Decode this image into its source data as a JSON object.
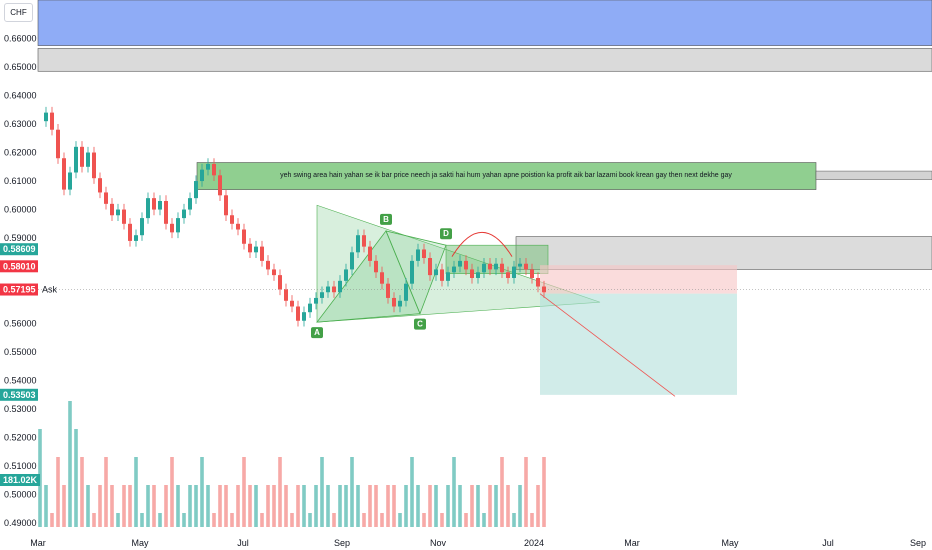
{
  "symbol": "CHF",
  "chart_data": {
    "type": "candlestick",
    "ylim": [
      0.4855,
      0.6735
    ],
    "y_ticks": [
      0.66,
      0.65,
      0.64,
      0.63,
      0.62,
      0.61,
      0.6,
      0.59,
      0.56,
      0.55,
      0.54,
      0.53,
      0.52,
      0.51,
      0.5,
      0.49
    ],
    "y_tick_labels": [
      "0.66000",
      "0.65000",
      "0.64000",
      "0.63000",
      "0.62000",
      "0.61000",
      "0.60000",
      "0.59000",
      "0.56000",
      "0.55000",
      "0.54000",
      "0.53000",
      "0.52000",
      "0.51000",
      "0.50000",
      "0.49000"
    ],
    "x_labels": [
      "Mar",
      "May",
      "Jul",
      "Sep",
      "Nov",
      "2024",
      "Mar",
      "May",
      "Jul",
      "Sep"
    ],
    "price_path": [
      0.631,
      0.634,
      0.628,
      0.618,
      0.607,
      0.613,
      0.622,
      0.615,
      0.62,
      0.611,
      0.606,
      0.602,
      0.598,
      0.6,
      0.595,
      0.589,
      0.591,
      0.597,
      0.604,
      0.6,
      0.603,
      0.595,
      0.592,
      0.597,
      0.6,
      0.604,
      0.61,
      0.614,
      0.616,
      0.612,
      0.605,
      0.598,
      0.595,
      0.593,
      0.588,
      0.585,
      0.587,
      0.582,
      0.579,
      0.577,
      0.572,
      0.568,
      0.566,
      0.561,
      0.564,
      0.567,
      0.569,
      0.571,
      0.573,
      0.571,
      0.575,
      0.579,
      0.585,
      0.591,
      0.587,
      0.582,
      0.578,
      0.574,
      0.569,
      0.566,
      0.568,
      0.574,
      0.582,
      0.586,
      0.583,
      0.577,
      0.579,
      0.575,
      0.578,
      0.58,
      0.582,
      0.579,
      0.576,
      0.578,
      0.581,
      0.579,
      0.581,
      0.578,
      0.576,
      0.58,
      0.581,
      0.579,
      0.576,
      0.573,
      0.571
    ],
    "volume": [
      0.52,
      0.5,
      0.49,
      0.51,
      0.5,
      0.53,
      0.52,
      0.51,
      0.5,
      0.49,
      0.5,
      0.51,
      0.5,
      0.49,
      0.5,
      0.5,
      0.51,
      0.49,
      0.5,
      0.5,
      0.49,
      0.5,
      0.51,
      0.5,
      0.49,
      0.5,
      0.5,
      0.51,
      0.5,
      0.49,
      0.5,
      0.5,
      0.49,
      0.5,
      0.51,
      0.5,
      0.5,
      0.49,
      0.5,
      0.5,
      0.51,
      0.5,
      0.49,
      0.5,
      0.5,
      0.49,
      0.5,
      0.51,
      0.5,
      0.49,
      0.5,
      0.5,
      0.51,
      0.5,
      0.49,
      0.5,
      0.5,
      0.49,
      0.5,
      0.5,
      0.49,
      0.5,
      0.51,
      0.5,
      0.49,
      0.5,
      0.5,
      0.49,
      0.5,
      0.51,
      0.5,
      0.49,
      0.5,
      0.5,
      0.49,
      0.5,
      0.5,
      0.51,
      0.5,
      0.49,
      0.5,
      0.51,
      0.49,
      0.5,
      0.51
    ],
    "volume_label": "181.02K",
    "price_badges": [
      {
        "text": "0.58609",
        "value": 0.58609,
        "color": "#26a69a"
      },
      {
        "text": "0.58010",
        "value": 0.5801,
        "color": "#f23645"
      },
      {
        "text": "0.57195",
        "value": 0.57195,
        "color": "#f23645",
        "extra": "Ask"
      },
      {
        "text": "0.53503",
        "value": 0.53503,
        "color": "#26a69a"
      }
    ],
    "harmonic_points": [
      {
        "label": "A",
        "value": 0.5605
      },
      {
        "label": "B",
        "value": 0.5925
      },
      {
        "label": "C",
        "value": 0.5635
      },
      {
        "label": "D",
        "value": 0.5875
      }
    ],
    "zones": [
      {
        "name": "top-blue",
        "from": 0.6735,
        "to": 0.6575,
        "color": "#7b9df5"
      },
      {
        "name": "grey-top",
        "from": 0.6565,
        "to": 0.6485,
        "color": "#d3d3d3"
      },
      {
        "name": "supply-green",
        "from": 0.6165,
        "to": 0.607,
        "color": "#7dc77c"
      },
      {
        "name": "grey-mid",
        "from": 0.5905,
        "to": 0.579,
        "color": "#d6d6d6"
      }
    ],
    "annotation": "yeh swing area hain yahan se ik bar price neech ja sakti hai hum yahan apne poistion ka profit aik bar lazami book krean gay  then next dekhe gay"
  },
  "colors": {
    "up": "#26a69a",
    "down": "#ef5350"
  }
}
